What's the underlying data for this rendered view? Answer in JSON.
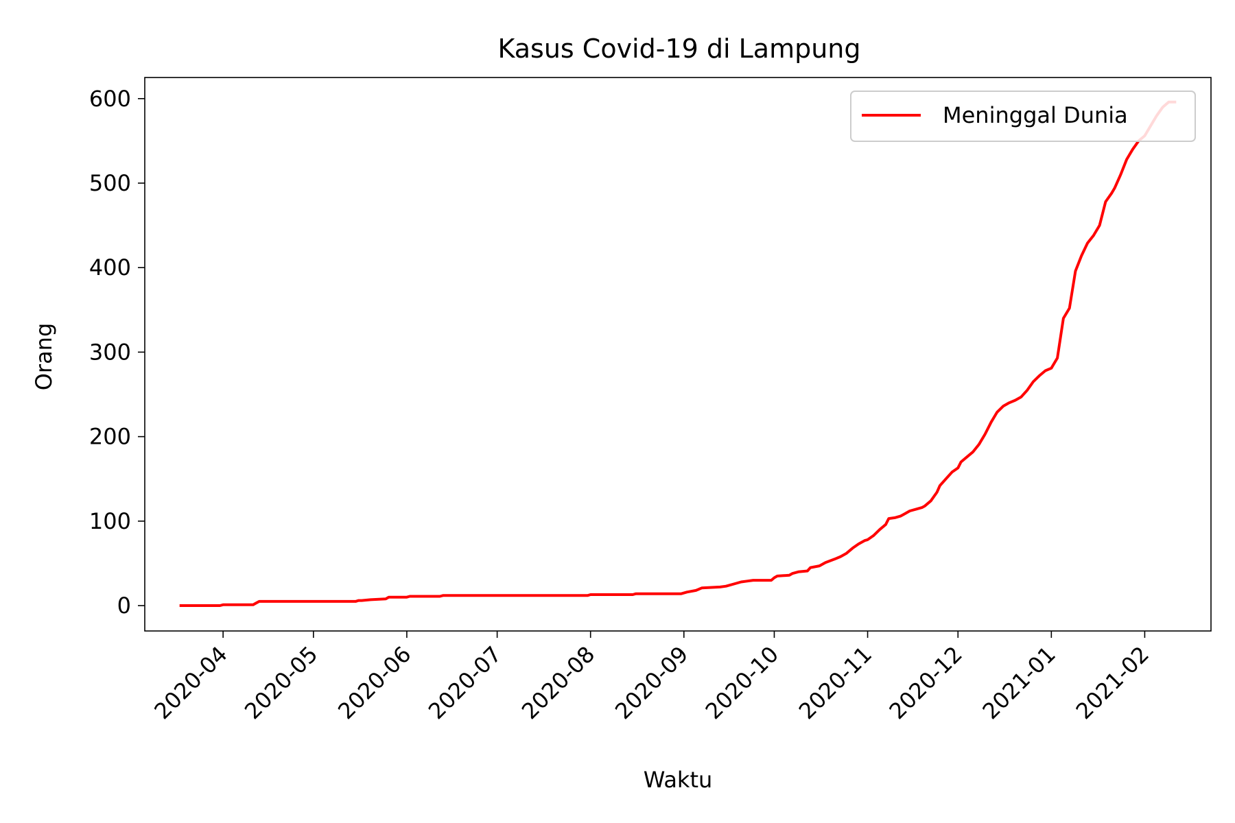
{
  "chart_data": {
    "type": "line",
    "title": "Kasus Covid-19 di Lampung",
    "xlabel": "Waktu",
    "ylabel": "Orang",
    "x_axis_type": "date",
    "xlim": [
      "2020-03-06",
      "2021-02-23"
    ],
    "ylim": [
      -30,
      625
    ],
    "x_ticks": [
      "2020-04-01",
      "2020-05-01",
      "2020-06-01",
      "2020-07-01",
      "2020-08-01",
      "2020-09-01",
      "2020-10-01",
      "2020-11-01",
      "2020-12-01",
      "2021-01-01",
      "2021-02-01"
    ],
    "x_tick_labels": [
      "2020-04",
      "2020-05",
      "2020-06",
      "2020-07",
      "2020-08",
      "2020-09",
      "2020-10",
      "2020-11",
      "2020-12",
      "2021-01",
      "2021-02"
    ],
    "y_ticks": [
      0,
      100,
      200,
      300,
      400,
      500,
      600
    ],
    "y_tick_labels": [
      "0",
      "100",
      "200",
      "300",
      "400",
      "500",
      "600"
    ],
    "grid": false,
    "legend_position": "top-right",
    "series": [
      {
        "name": "Meninggal Dunia",
        "color": "#ff0000",
        "x": [
          "2020-03-18",
          "2020-03-31",
          "2020-04-01",
          "2020-04-11",
          "2020-04-12",
          "2020-04-13",
          "2020-04-30",
          "2020-05-15",
          "2020-05-16",
          "2020-05-17",
          "2020-05-20",
          "2020-05-25",
          "2020-05-26",
          "2020-06-01",
          "2020-06-02",
          "2020-06-12",
          "2020-06-13",
          "2020-07-01",
          "2020-07-31",
          "2020-08-01",
          "2020-08-15",
          "2020-08-16",
          "2020-08-31",
          "2020-09-02",
          "2020-09-05",
          "2020-09-07",
          "2020-09-13",
          "2020-09-15",
          "2020-09-18",
          "2020-09-20",
          "2020-09-22",
          "2020-09-24",
          "2020-09-30",
          "2020-10-01",
          "2020-10-02",
          "2020-10-06",
          "2020-10-07",
          "2020-10-09",
          "2020-10-12",
          "2020-10-13",
          "2020-10-16",
          "2020-10-18",
          "2020-10-21",
          "2020-10-23",
          "2020-10-25",
          "2020-10-27",
          "2020-10-29",
          "2020-10-31",
          "2020-11-01",
          "2020-11-03",
          "2020-11-05",
          "2020-11-07",
          "2020-11-08",
          "2020-11-10",
          "2020-11-12",
          "2020-11-13",
          "2020-11-15",
          "2020-11-17",
          "2020-11-19",
          "2020-11-20",
          "2020-11-22",
          "2020-11-24",
          "2020-11-25",
          "2020-11-27",
          "2020-11-29",
          "2020-12-01",
          "2020-12-02",
          "2020-12-04",
          "2020-12-06",
          "2020-12-08",
          "2020-12-10",
          "2020-12-12",
          "2020-12-14",
          "2020-12-16",
          "2020-12-18",
          "2020-12-20",
          "2020-12-22",
          "2020-12-24",
          "2020-12-26",
          "2020-12-28",
          "2020-12-30",
          "2021-01-01",
          "2021-01-03",
          "2021-01-05",
          "2021-01-07",
          "2021-01-09",
          "2021-01-11",
          "2021-01-13",
          "2021-01-15",
          "2021-01-17",
          "2021-01-19",
          "2021-01-21",
          "2021-01-22",
          "2021-01-24",
          "2021-01-26",
          "2021-01-28",
          "2021-01-30",
          "2021-02-01",
          "2021-02-03",
          "2021-02-05",
          "2021-02-07",
          "2021-02-09",
          "2021-02-11"
        ],
        "y": [
          0,
          0,
          1,
          1,
          3,
          5,
          5,
          5,
          6,
          6,
          7,
          8,
          10,
          10,
          11,
          11,
          12,
          12,
          12,
          13,
          13,
          14,
          14,
          16,
          18,
          21,
          22,
          23,
          26,
          28,
          29,
          30,
          30,
          33,
          35,
          36,
          38,
          40,
          41,
          45,
          47,
          51,
          55,
          58,
          62,
          68,
          73,
          77,
          78,
          83,
          90,
          96,
          103,
          104,
          106,
          108,
          112,
          114,
          116,
          118,
          124,
          134,
          142,
          150,
          158,
          163,
          170,
          176,
          182,
          191,
          203,
          217,
          229,
          236,
          240,
          243,
          247,
          255,
          265,
          272,
          278,
          281,
          293,
          340,
          352,
          396,
          414,
          429,
          438,
          450,
          478,
          488,
          494,
          510,
          528,
          540,
          550,
          556,
          568,
          580,
          590,
          596,
          596
        ]
      }
    ]
  }
}
